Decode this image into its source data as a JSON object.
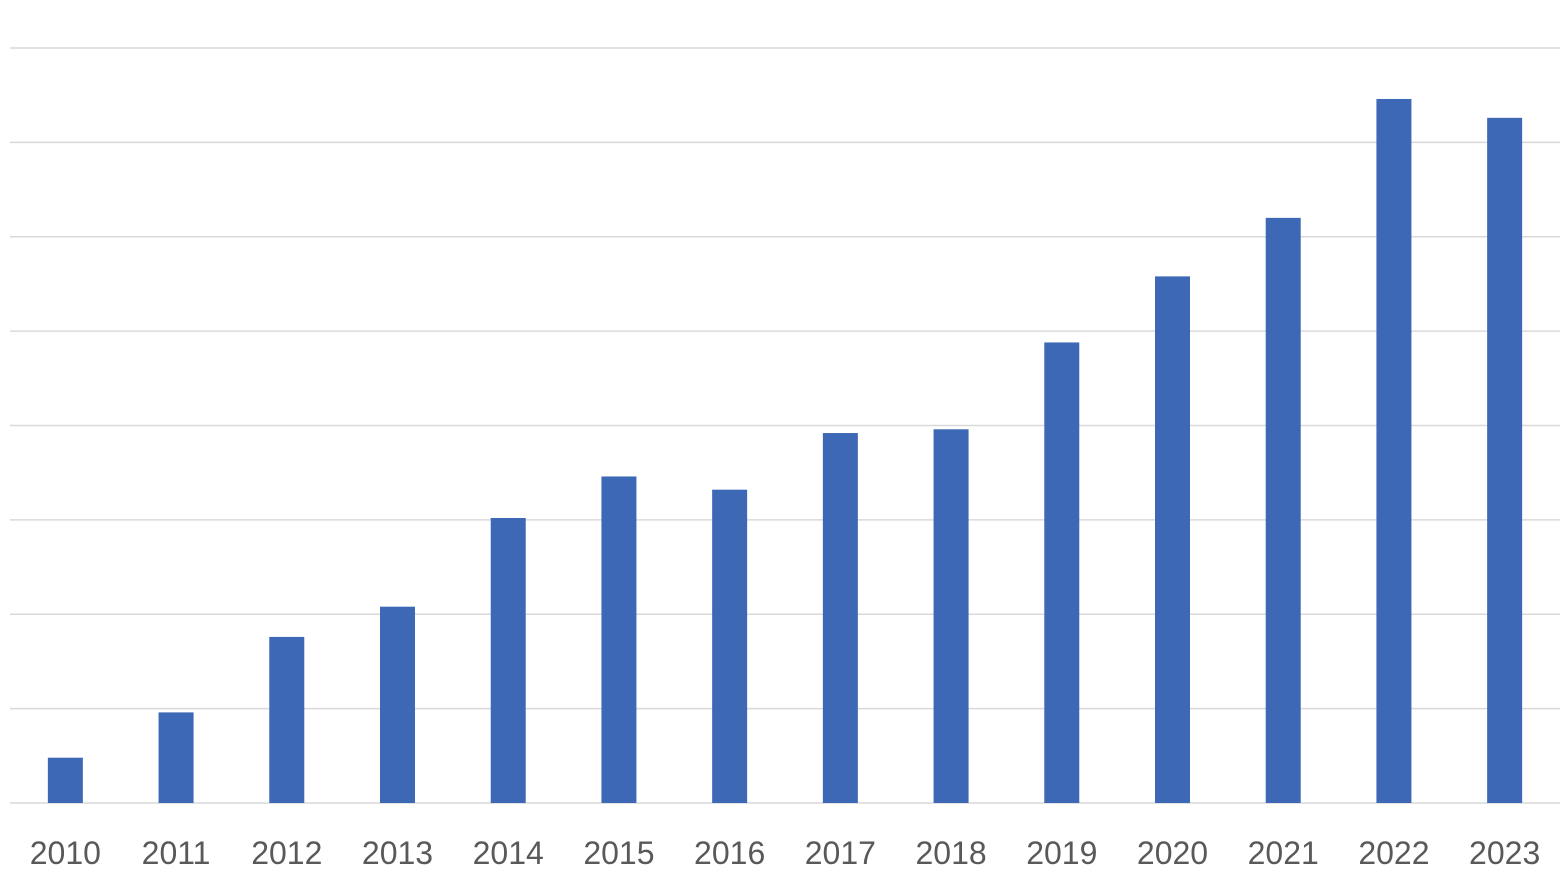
{
  "chart_data": {
    "type": "bar",
    "categories": [
      "2010",
      "2011",
      "2012",
      "2013",
      "2014",
      "2015",
      "2016",
      "2017",
      "2018",
      "2019",
      "2020",
      "2021",
      "2022",
      "2023"
    ],
    "values": [
      2.4,
      4.8,
      8.8,
      10.4,
      15.1,
      17.3,
      16.6,
      19.6,
      19.8,
      24.4,
      27.9,
      31.0,
      37.3,
      36.3
    ],
    "ylim": [
      0,
      40
    ],
    "gridlines": 8,
    "grid": true,
    "title": "",
    "xlabel": "",
    "ylabel": "",
    "bar_color": "#3d68b6",
    "legend": "none"
  }
}
